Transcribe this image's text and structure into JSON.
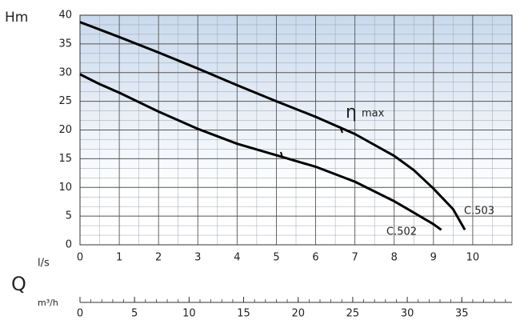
{
  "chart_data": {
    "type": "line",
    "y_label": "Hm",
    "x_label": "l/s",
    "q_label": "Q",
    "x2_label": "m³/h",
    "eta_symbol": "η",
    "eta_label": "max",
    "xlim": [
      0,
      11
    ],
    "xticks": [
      0,
      1,
      2,
      3,
      4,
      5,
      6,
      7,
      8,
      9,
      10
    ],
    "ylim": [
      0,
      40
    ],
    "yticks": [
      0,
      5,
      10,
      15,
      20,
      25,
      30,
      35,
      40
    ],
    "x2lim": [
      0,
      39.6
    ],
    "x2ticks": [
      0,
      5,
      10,
      15,
      20,
      25,
      30,
      35
    ],
    "x2_minor_step": 1,
    "grid": true,
    "minor_divisions": {
      "x": 2,
      "y": 3
    },
    "series": [
      {
        "name": "C.503",
        "color": "#000000",
        "x": [
          0,
          1,
          2,
          3,
          4,
          5,
          6,
          7,
          8,
          8.5,
          9,
          9.5,
          9.8
        ],
        "values": [
          38.8,
          36.2,
          33.5,
          30.7,
          27.8,
          25,
          22.3,
          19.3,
          15.5,
          13,
          9.8,
          6.2,
          2.6
        ]
      },
      {
        "name": "C.502",
        "color": "#000000",
        "x": [
          0,
          0.5,
          1,
          2,
          3,
          4,
          5,
          6,
          7,
          8,
          8.5,
          9,
          9.2
        ],
        "values": [
          29.7,
          28,
          26.5,
          23.2,
          20.2,
          17.6,
          15.6,
          13.6,
          11,
          7.6,
          5.6,
          3.6,
          2.6
        ]
      }
    ]
  }
}
